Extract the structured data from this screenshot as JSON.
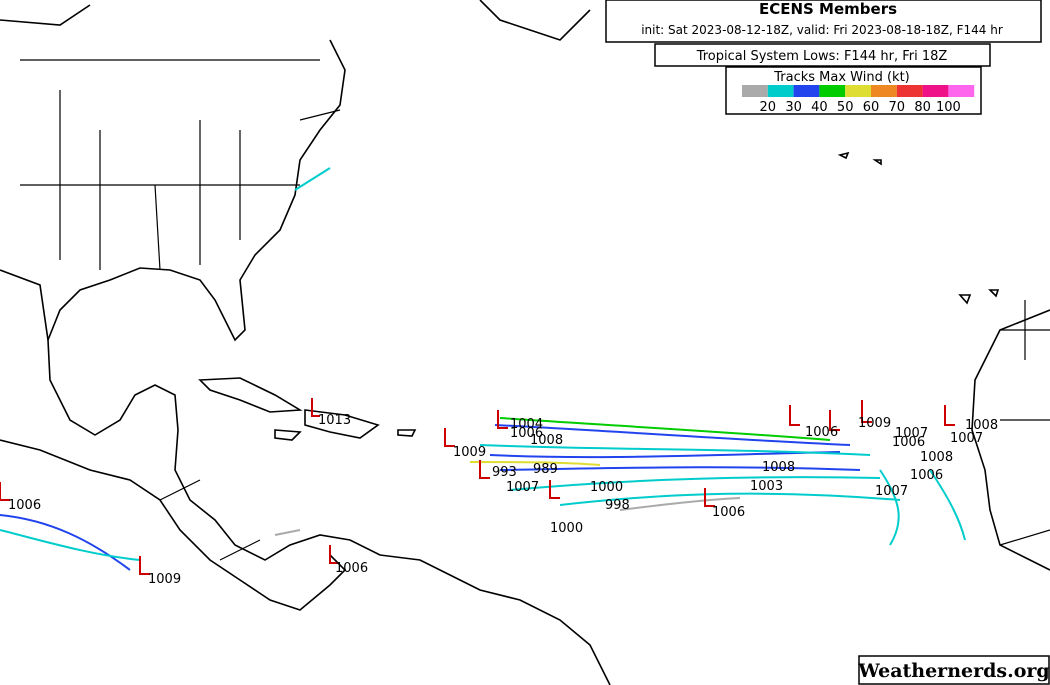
{
  "header": {
    "title": "ECENS Members",
    "subtitle": "init: Sat 2023-08-12-18Z, valid: Fri 2023-08-18-18Z, F144 hr",
    "panel": "Tropical System Lows: F144 hr, Fri 18Z"
  },
  "legend": {
    "title": "Tracks Max Wind (kt)",
    "colors": [
      "#aaaaaa",
      "#00cccc",
      "#2244ee",
      "#00cc00",
      "#dddd33",
      "#ee8822",
      "#ee3333",
      "#ee1188",
      "#ff66ee"
    ],
    "ticks": [
      20,
      30,
      40,
      50,
      60,
      70,
      80,
      100
    ]
  },
  "pressure_labels": [
    1013,
    1004,
    1006,
    1008,
    1009,
    993,
    989,
    1000,
    1007,
    998,
    1006,
    1000,
    1006,
    1009,
    1006,
    1008,
    1003,
    1006,
    1006,
    1007,
    1008,
    1006,
    1007,
    1008,
    1007,
    1009
  ],
  "watermark": "Weathernerds.org"
}
